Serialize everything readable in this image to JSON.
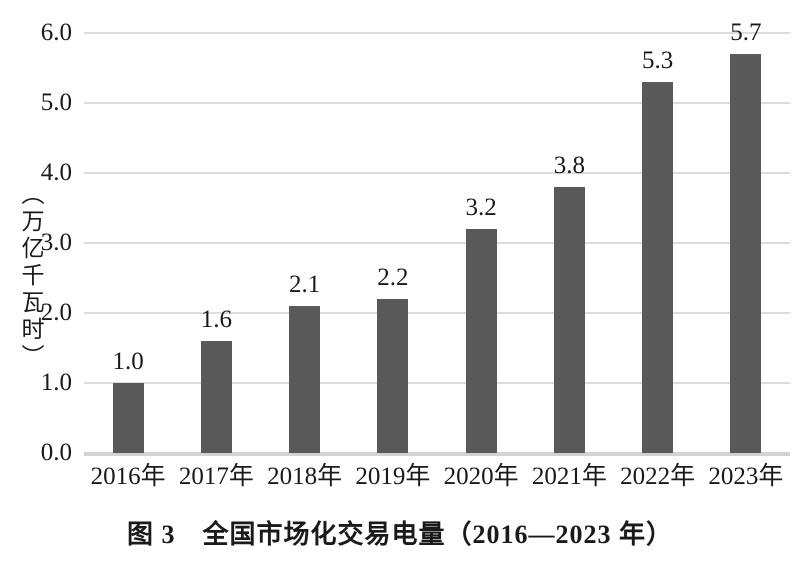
{
  "figure": {
    "caption": "图 3　全国市场化交易电量（2016—2023 年）"
  },
  "chart_data": {
    "type": "bar",
    "title": "图 3　全国市场化交易电量（2016—2023 年）",
    "ylabel": "（万亿千瓦时）",
    "xlabel": "",
    "categories": [
      "2016年",
      "2017年",
      "2018年",
      "2019年",
      "2020年",
      "2021年",
      "2022年",
      "2023年"
    ],
    "values": [
      1.0,
      1.6,
      2.1,
      2.2,
      3.2,
      3.8,
      5.3,
      5.7
    ],
    "data_labels": [
      "1.0",
      "1.6",
      "2.1",
      "2.2",
      "3.2",
      "3.8",
      "5.3",
      "5.7"
    ],
    "ylim": [
      0,
      6
    ],
    "ytick_labels": [
      "0.0",
      "1.0",
      "2.0",
      "3.0",
      "4.0",
      "5.0",
      "6.0"
    ],
    "grid": true,
    "legend_position": "none",
    "bar_color": "#595959",
    "gridline_color": "#dcdcdc",
    "axis_line_color": "#d2d2d2",
    "text_color": "#1a1a1a"
  }
}
